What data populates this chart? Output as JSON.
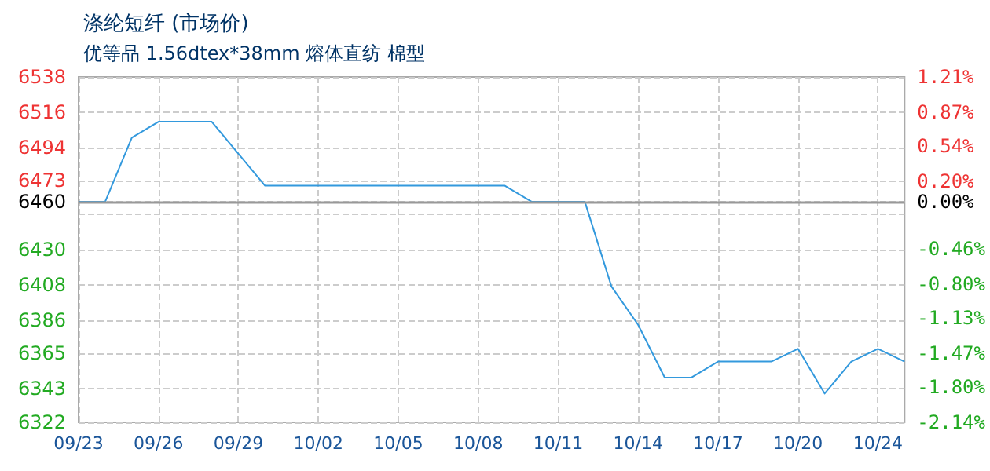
{
  "chart_data": {
    "type": "line",
    "title": "涤纶短纤 (市场价)",
    "subtitle": "优等品 1.56dtex*38mm 熔体直纺 棉型",
    "categories": [
      "09/23",
      null,
      null,
      "09/26",
      null,
      null,
      "09/29",
      null,
      null,
      "10/02",
      null,
      null,
      "10/05",
      null,
      null,
      "10/08",
      null,
      null,
      "10/11",
      null,
      null,
      "10/14",
      null,
      null,
      "10/17",
      null,
      null,
      "10/20",
      null,
      null,
      "10/24",
      null
    ],
    "series": [
      {
        "color": "#3399dd",
        "values": [
          6460,
          6460,
          6500,
          6510,
          6510,
          6510,
          6490,
          6470,
          6470,
          6470,
          6470,
          6470,
          6470,
          6470,
          6470,
          6470,
          6470,
          6460,
          6460,
          6460,
          6407,
          6383,
          6350,
          6350,
          6360,
          6360,
          6360,
          6368,
          6340,
          6360,
          6368,
          6360
        ]
      }
    ],
    "ylim": [
      6322,
      6538
    ],
    "yticks": [
      6322,
      6343,
      6365,
      6386,
      6408,
      6430,
      {
        "value": 6452,
        "label": null
      },
      6460,
      6473,
      6494,
      6516,
      6538
    ],
    "y2lim": [
      -2.14,
      1.21
    ],
    "y2ticks": [
      {
        "value": -2.14,
        "label": "-2.14%"
      },
      {
        "value": -1.8,
        "label": "-1.80%"
      },
      {
        "value": -1.47,
        "label": "-1.47%"
      },
      {
        "value": -1.13,
        "label": "-1.13%"
      },
      {
        "value": -0.8,
        "label": "-0.80%"
      },
      {
        "value": -0.46,
        "label": "-0.46%"
      },
      {
        "value": 0,
        "label": "0.00%"
      },
      {
        "value": 0.2,
        "label": "0.20%"
      },
      {
        "value": 0.54,
        "label": "0.54%"
      },
      {
        "value": 0.87,
        "label": "0.87%"
      },
      {
        "value": 1.21,
        "label": "1.21%"
      }
    ],
    "ref_lines": [
      {
        "axis": "y",
        "value": 6460,
        "color": "#999999"
      }
    ],
    "grid": true,
    "marker": "none",
    "line_style": "solid"
  }
}
